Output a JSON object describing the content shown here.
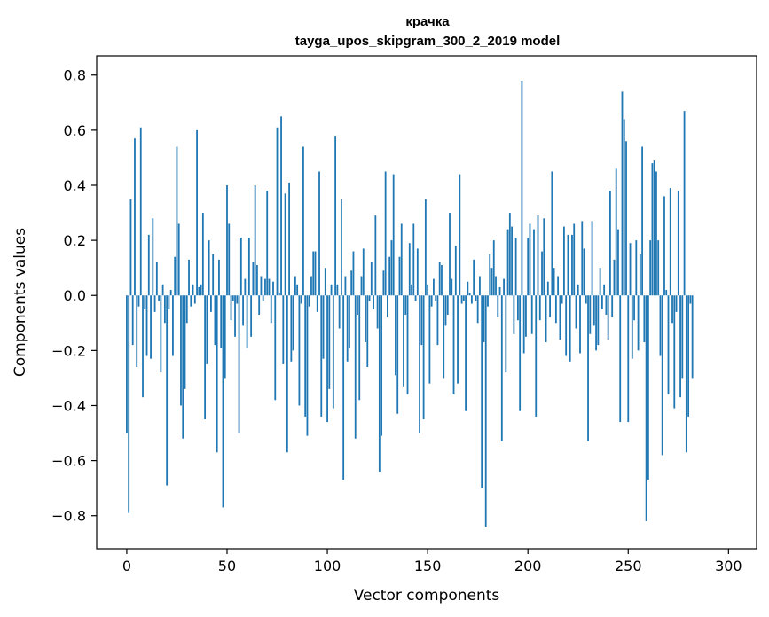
{
  "chart_data": {
    "type": "bar",
    "title": "крачка",
    "subtitle": "tayga_upos_skipgram_300_2_2019 model",
    "xlabel": "Vector components",
    "ylabel": "Components values",
    "xlim": [
      -15,
      314
    ],
    "ylim": [
      -0.92,
      0.87
    ],
    "xticks": [
      0,
      50,
      100,
      150,
      200,
      250,
      300
    ],
    "yticks": [
      -0.8,
      -0.6,
      -0.4,
      -0.2,
      0.0,
      0.2,
      0.4,
      0.6,
      0.8
    ],
    "ytick_labels": [
      "−0.8",
      "−0.6",
      "−0.4",
      "−0.2",
      "0.0",
      "0.2",
      "0.4",
      "0.6",
      "0.8"
    ],
    "xtick_labels": [
      "0",
      "50",
      "100",
      "150",
      "200",
      "250",
      "300"
    ],
    "bar_color": "#1f77b4",
    "grid": false,
    "values": [
      -0.5,
      -0.79,
      0.35,
      -0.18,
      0.57,
      -0.26,
      -0.04,
      0.61,
      -0.37,
      -0.05,
      -0.22,
      0.22,
      -0.23,
      0.28,
      -0.06,
      0.12,
      -0.02,
      -0.28,
      0.04,
      -0.1,
      -0.69,
      -0.05,
      0.02,
      -0.22,
      0.14,
      0.54,
      0.26,
      -0.4,
      -0.52,
      -0.34,
      -0.1,
      0.13,
      -0.04,
      0.04,
      -0.03,
      0.6,
      0.03,
      0.04,
      0.3,
      -0.45,
      -0.25,
      0.2,
      -0.06,
      0.15,
      -0.18,
      -0.57,
      0.13,
      -0.19,
      -0.77,
      -0.3,
      0.4,
      0.26,
      -0.09,
      -0.02,
      -0.15,
      -0.03,
      -0.5,
      0.21,
      -0.11,
      0.06,
      -0.19,
      0.21,
      -0.15,
      0.12,
      0.4,
      0.11,
      -0.07,
      0.07,
      -0.02,
      0.06,
      0.38,
      0.06,
      -0.1,
      0.05,
      -0.38,
      0.61,
      0.01,
      0.65,
      -0.25,
      0.37,
      -0.57,
      0.41,
      -0.24,
      -0.2,
      0.07,
      0.04,
      -0.4,
      -0.03,
      0.54,
      -0.44,
      -0.51,
      -0.04,
      0.07,
      0.16,
      0.16,
      -0.06,
      0.45,
      -0.44,
      -0.23,
      0.1,
      -0.46,
      -0.34,
      0.04,
      -0.41,
      0.58,
      0.04,
      -0.12,
      0.35,
      -0.67,
      0.07,
      -0.24,
      -0.19,
      0.09,
      0.16,
      -0.52,
      -0.07,
      -0.38,
      0.07,
      0.17,
      -0.17,
      -0.26,
      -0.02,
      0.12,
      -0.05,
      0.29,
      -0.12,
      -0.64,
      -0.51,
      0.09,
      0.45,
      -0.08,
      0.14,
      0.2,
      0.44,
      -0.29,
      -0.43,
      0.14,
      0.26,
      -0.33,
      -0.07,
      -0.36,
      0.19,
      0.04,
      0.26,
      -0.02,
      0.17,
      -0.5,
      -0.18,
      -0.45,
      0.35,
      0.04,
      -0.32,
      -0.04,
      0.06,
      -0.02,
      -0.18,
      0.12,
      0.11,
      -0.3,
      -0.11,
      -0.07,
      0.3,
      0.06,
      -0.36,
      0.18,
      -0.32,
      0.44,
      -0.03,
      -0.02,
      -0.42,
      0.05,
      0.01,
      -0.03,
      0.13,
      -0.02,
      -0.1,
      0.07,
      -0.7,
      -0.17,
      -0.84,
      -0.04,
      0.15,
      0.1,
      0.2,
      0.07,
      -0.08,
      0.03,
      -0.53,
      0.06,
      -0.28,
      0.24,
      0.3,
      0.25,
      -0.14,
      0.21,
      -0.09,
      -0.42,
      0.78,
      -0.21,
      -0.15,
      0.21,
      0.26,
      -0.14,
      0.24,
      -0.44,
      0.29,
      -0.09,
      0.16,
      0.28,
      -0.17,
      0.05,
      -0.08,
      0.45,
      0.1,
      -0.1,
      0.07,
      -0.16,
      -0.03,
      0.25,
      -0.22,
      0.22,
      -0.24,
      0.22,
      0.26,
      -0.12,
      0.04,
      -0.21,
      0.27,
      0.17,
      -0.03,
      -0.53,
      -0.14,
      0.27,
      -0.11,
      -0.2,
      -0.18,
      0.1,
      -0.05,
      0.04,
      -0.07,
      -0.16,
      0.38,
      -0.08,
      0.13,
      0.46,
      0.24,
      -0.46,
      0.74,
      0.64,
      0.56,
      -0.46,
      0.19,
      -0.23,
      -0.09,
      0.2,
      -0.2,
      0.15,
      0.54,
      -0.17,
      -0.82,
      -0.67,
      0.2,
      0.48,
      0.49,
      0.45,
      0.2,
      -0.22,
      -0.58,
      0.36,
      0.02,
      -0.36,
      0.39,
      -0.1,
      -0.41,
      -0.06,
      0.38,
      -0.37,
      -0.3,
      0.67,
      -0.57,
      -0.44,
      -0.03,
      -0.3
    ]
  }
}
